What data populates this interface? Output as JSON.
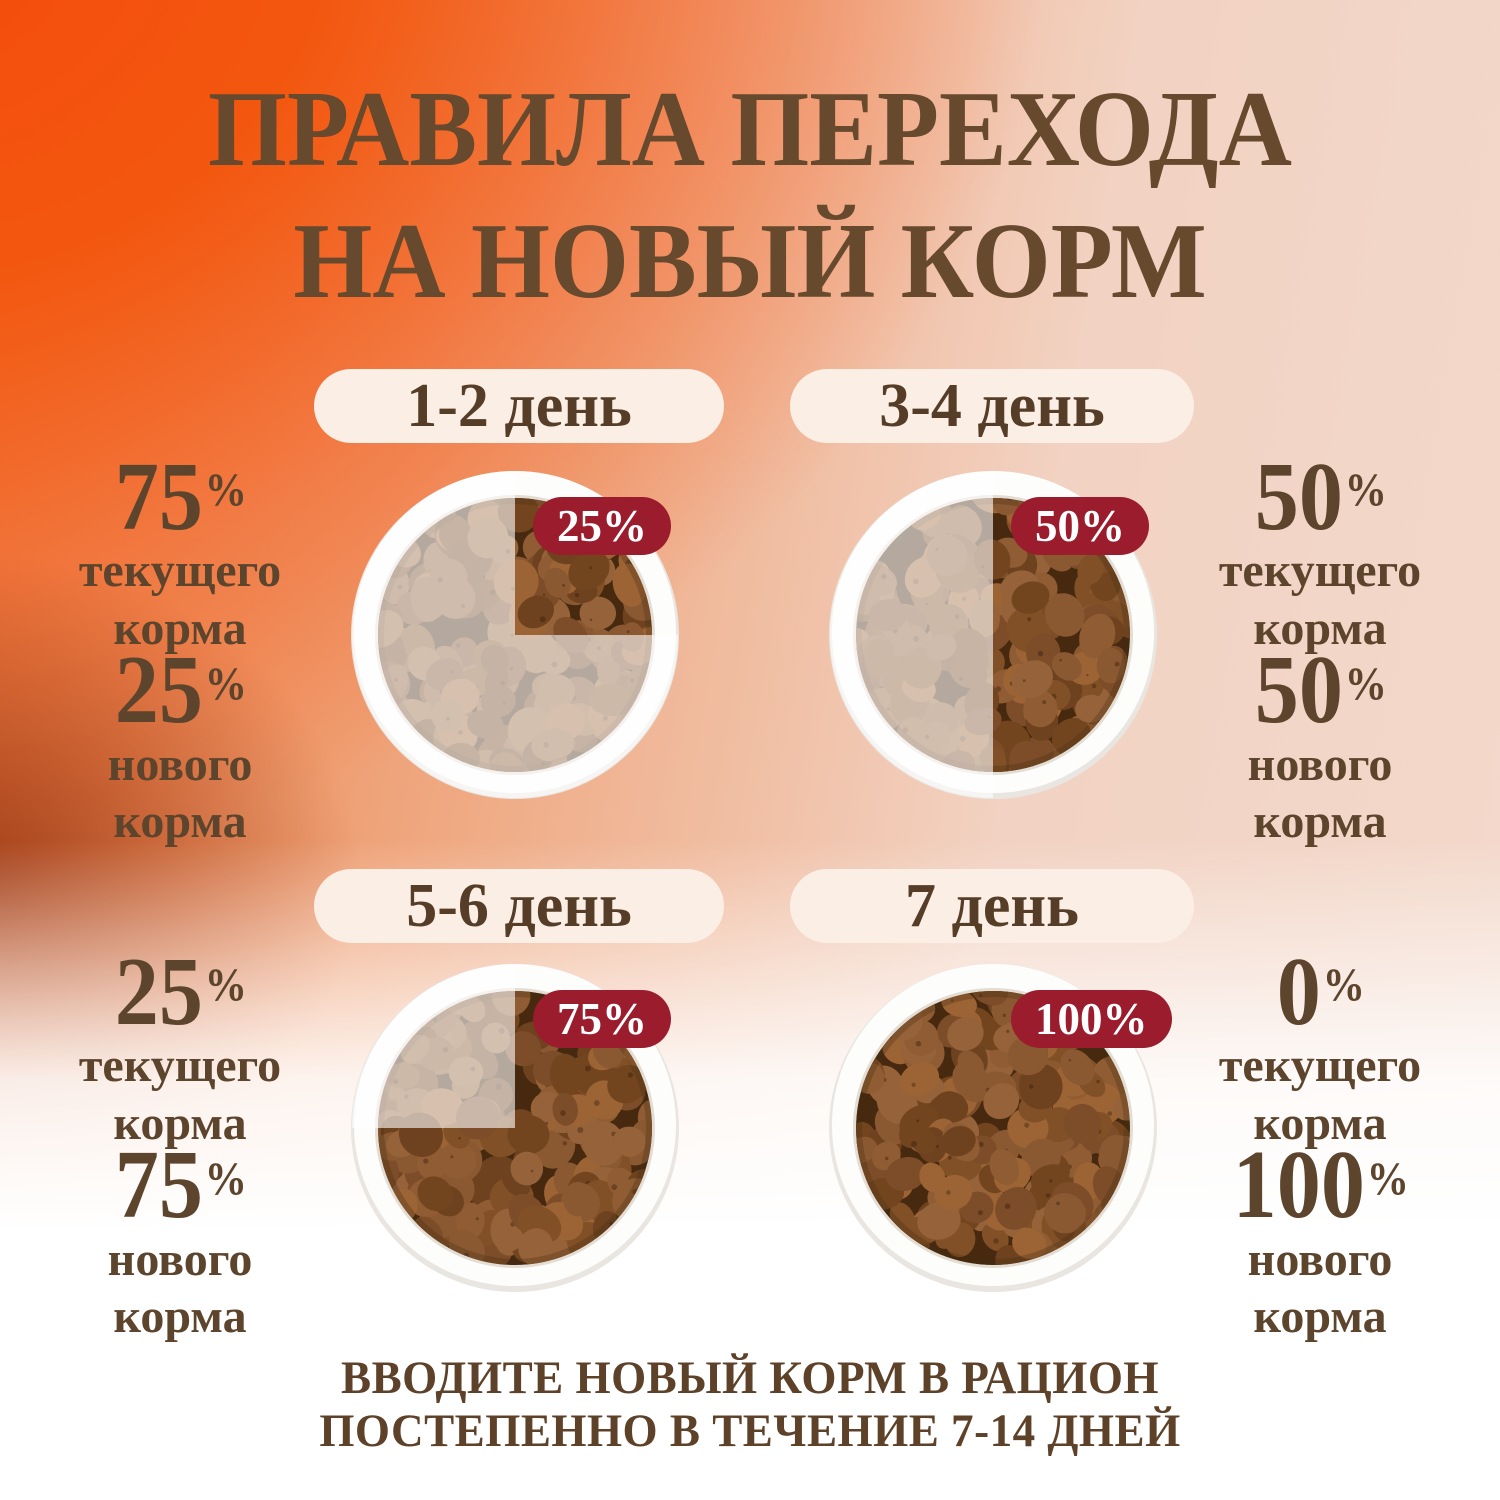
{
  "title": {
    "line1": "ПРАВИЛА ПЕРЕХОДА",
    "line2": "НА НОВЫЙ КОРМ"
  },
  "footer": {
    "line1": "ВВОДИТЕ НОВЫЙ КОРМ В РАЦИОН",
    "line2": "ПОСТЕПЕННО В ТЕЧЕНИЕ 7-14 ДНЕЙ"
  },
  "colors": {
    "badge_bg": "#9b1c2c",
    "badge_text": "#ffffff",
    "title_text": "#67492e",
    "label_text": "#5d442d",
    "pill_bg": "#fbeee4",
    "pill_text": "#553d28",
    "footer_text": "#5d4128"
  },
  "steps": [
    {
      "day_label": "1-2 день",
      "badge": "25%",
      "current": {
        "value": "75",
        "unit": "%",
        "caption_line1": "текущего",
        "caption_line2": "корма"
      },
      "new": {
        "value": "25",
        "unit": "%",
        "caption_line1": "нового",
        "caption_line2": "корма"
      },
      "faded_region": "three-quarters"
    },
    {
      "day_label": "3-4 день",
      "badge": "50%",
      "current": {
        "value": "50",
        "unit": "%",
        "caption_line1": "текущего",
        "caption_line2": "корма"
      },
      "new": {
        "value": "50",
        "unit": "%",
        "caption_line1": "нового",
        "caption_line2": "корма"
      },
      "faded_region": "left-half"
    },
    {
      "day_label": "5-6 день",
      "badge": "75%",
      "current": {
        "value": "25",
        "unit": "%",
        "caption_line1": "текущего",
        "caption_line2": "корма"
      },
      "new": {
        "value": "75",
        "unit": "%",
        "caption_line1": "нового",
        "caption_line2": "корма"
      },
      "faded_region": "top-left-quarter"
    },
    {
      "day_label": "7 день",
      "badge": "100%",
      "current": {
        "value": "0",
        "unit": "%",
        "caption_line1": "текущего",
        "caption_line2": "корма"
      },
      "new": {
        "value": "100",
        "unit": "%",
        "caption_line1": "нового",
        "caption_line2": "корма"
      },
      "faded_region": "none"
    }
  ]
}
